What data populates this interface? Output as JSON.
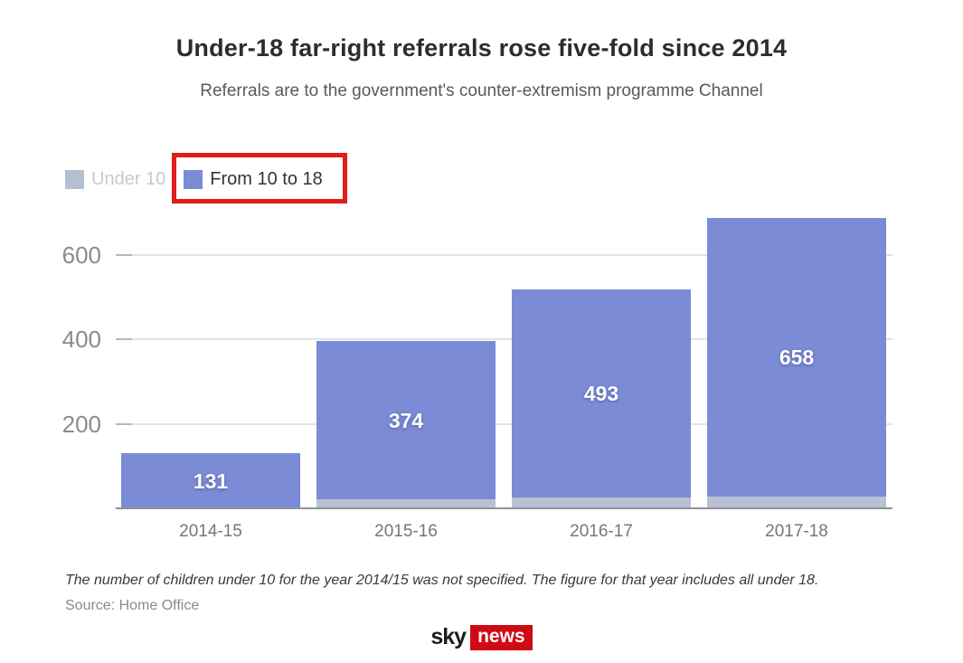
{
  "header": {
    "title": "Under-18 far-right referrals rose five-fold since 2014",
    "subtitle": "Referrals are to the government's counter-extremism programme Channel"
  },
  "legend": {
    "items": [
      {
        "label": "Under 10",
        "swatch_color": "#b4bfd2",
        "text_color": "#c9c9c9",
        "dimmed": true
      },
      {
        "label": "From 10 to 18",
        "swatch_color": "#7b8bd6",
        "text_color": "#333333",
        "dimmed": false
      }
    ],
    "highlight_box_color": "#e21b1b"
  },
  "chart_data": {
    "type": "bar",
    "stacked": true,
    "title": "Under-18 far-right referrals rose five-fold since 2014",
    "subtitle": "Referrals are to the government's counter-extremism programme Channel",
    "categories": [
      "2014-15",
      "2015-16",
      "2016-17",
      "2017-18"
    ],
    "series": [
      {
        "name": "Under 10",
        "color": "#b7c1d3",
        "values": [
          0,
          21,
          26,
          28
        ]
      },
      {
        "name": "From 10 to 18",
        "color": "#7b8bd6",
        "values": [
          131,
          374,
          493,
          658
        ]
      }
    ],
    "bar_labels": [
      "131",
      "374",
      "493",
      "658"
    ],
    "xlabel": "",
    "ylabel": "",
    "yticks": [
      200,
      400,
      600
    ],
    "ylim": [
      0,
      700
    ],
    "grid": true,
    "legend_position": "top-left",
    "gridline_color": "#e3e3e3",
    "axis_line_color": "#91919a",
    "value_label_color": "#ffffff"
  },
  "footnote": "The number of children under 10 for the year 2014/15 was not specified. The figure for that year includes all under 18.",
  "source": "Source: Home Office",
  "logo": {
    "sky": "sky",
    "news": "news",
    "news_bg_color": "#cf0a12"
  }
}
